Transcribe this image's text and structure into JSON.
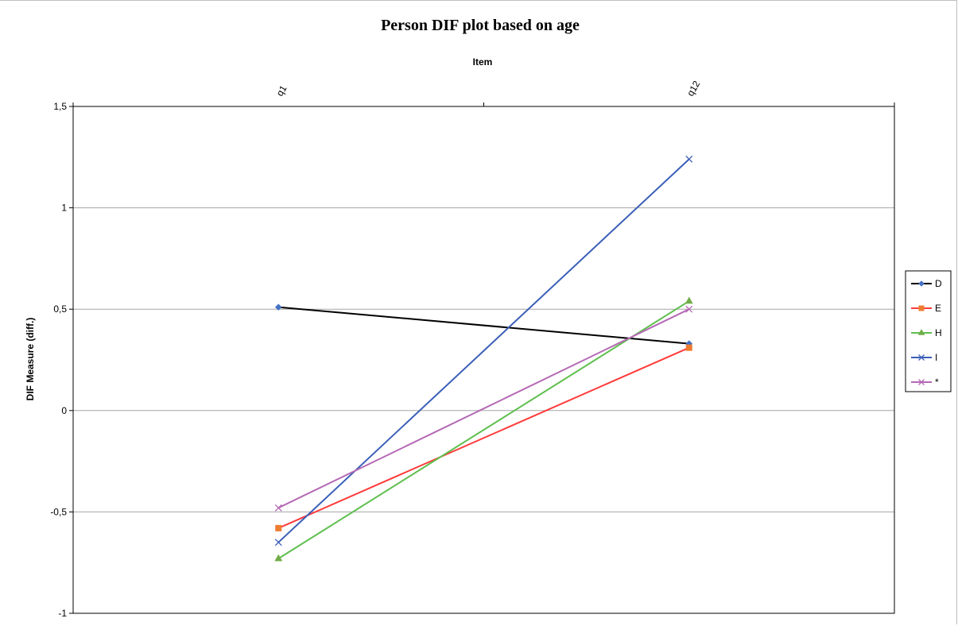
{
  "chart_data": {
    "type": "line",
    "title": "Person DIF plot based on age",
    "xlabel": "Item",
    "ylabel": "DIF Measure (diff.)",
    "categories": [
      "q1",
      "q12"
    ],
    "ylim": [
      -1,
      1.5
    ],
    "yticks": [
      -1,
      -0.5,
      0,
      0.5,
      1,
      1.5
    ],
    "ytick_labels": [
      "-1",
      "-0,5",
      "0",
      "0,5",
      "1",
      "1,5"
    ],
    "grid": true,
    "legend_position": "right",
    "series": [
      {
        "name": "D",
        "values": [
          0.51,
          0.33
        ],
        "color": "#000000",
        "marker": "diamond",
        "marker_color": "#4472c4"
      },
      {
        "name": "E",
        "values": [
          -0.58,
          0.31
        ],
        "color": "#ff3b3b",
        "marker": "square",
        "marker_color": "#ed7d31"
      },
      {
        "name": "H",
        "values": [
          -0.73,
          0.54
        ],
        "color": "#5fbf4f",
        "marker": "triangle",
        "marker_color": "#70ad47"
      },
      {
        "name": "I",
        "values": [
          -0.65,
          1.24
        ],
        "color": "#3b5fb8",
        "marker": "x",
        "marker_color": "#3b5fb8"
      },
      {
        "name": "*",
        "values": [
          -0.48,
          0.5
        ],
        "color": "#b469b4",
        "marker": "x",
        "marker_color": "#b469b4"
      }
    ]
  }
}
